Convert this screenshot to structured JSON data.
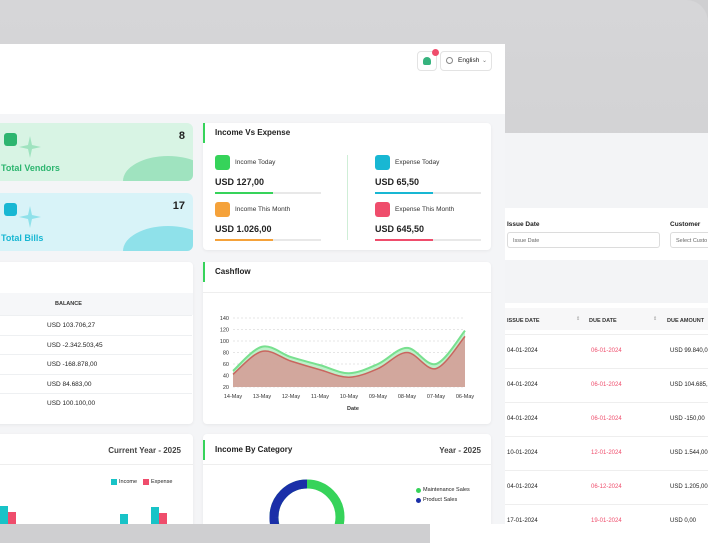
{
  "header": {
    "language": "English",
    "notification_count": ""
  },
  "stats": [
    {
      "label": "Total Vendors",
      "value": "8"
    },
    {
      "label": "Total Bills",
      "value": "17"
    }
  ],
  "income_expense": {
    "title": "Income Vs Expense",
    "items": [
      {
        "label": "Income Today",
        "amount": "USD 127,00",
        "color": "#36d35a",
        "fill": 0.55
      },
      {
        "label": "Expense Today",
        "amount": "USD 65,50",
        "color": "#18b7d3",
        "fill": 0.55
      },
      {
        "label": "Income This Month",
        "amount": "USD 1.026,00",
        "color": "#f5a23a",
        "fill": 0.55
      },
      {
        "label": "Expense This Month",
        "amount": "USD 645,50",
        "color": "#ef4d6c",
        "fill": 0.55
      }
    ]
  },
  "balance": {
    "header": "BALANCE",
    "rows": [
      "USD 103.706,27",
      "USD -2.342.503,45",
      "USD -168.878,00",
      "USD 84.683,00",
      "USD 100.100,00"
    ]
  },
  "cashflow": {
    "title": "Cashflow"
  },
  "chart_data": {
    "type": "area",
    "title": "Cashflow",
    "xlabel": "Date",
    "ylabel": "",
    "ylim": [
      20,
      140
    ],
    "yticks": [
      20,
      40,
      60,
      80,
      100,
      120,
      140
    ],
    "categories": [
      "14-May",
      "13-May",
      "12-May",
      "11-May",
      "10-May",
      "09-May",
      "08-May",
      "07-May",
      "06-May"
    ],
    "series": [
      {
        "values": [
          48,
          90,
          72,
          58,
          44,
          60,
          88,
          60,
          118
        ],
        "color": "#78e08f"
      },
      {
        "values": [
          42,
          82,
          65,
          50,
          37,
          52,
          80,
          52,
          108
        ],
        "color": "#c9655f"
      }
    ]
  },
  "income_category": {
    "title": "Income By Category",
    "period": "Year - 2025",
    "legend": [
      {
        "label": "Maintenance Sales",
        "color": "#36d35a"
      },
      {
        "label": "Product Sales",
        "color": "#1a2fa8"
      }
    ]
  },
  "bottom_left": {
    "period": "Current Year - 2025",
    "legend": [
      {
        "label": "Income",
        "color": "#18c3c7"
      },
      {
        "label": "Expense",
        "color": "#ef4d6c"
      }
    ]
  },
  "back_window": {
    "filters": {
      "issue_date_label": "Issue Date",
      "issue_date_placeholder": "Issue Date",
      "customer_label": "Customer",
      "customer_placeholder": "Select Custo"
    },
    "columns": [
      "ISSUE DATE",
      "DUE DATE",
      "DUE AMOUNT"
    ],
    "rows": [
      {
        "issue": "04-01-2024",
        "due": "06-01-2024",
        "amount": "USD 99.840,0"
      },
      {
        "issue": "04-01-2024",
        "due": "06-01-2024",
        "amount": "USD 104.685,"
      },
      {
        "issue": "04-01-2024",
        "due": "06-01-2024",
        "amount": "USD -150,00"
      },
      {
        "issue": "10-01-2024",
        "due": "12-01-2024",
        "amount": "USD 1.544,00"
      },
      {
        "issue": "04-01-2024",
        "due": "06-12-2024",
        "amount": "USD 1.205,00"
      },
      {
        "issue": "17-01-2024",
        "due": "19-01-2024",
        "amount": "USD 0,00"
      }
    ]
  }
}
